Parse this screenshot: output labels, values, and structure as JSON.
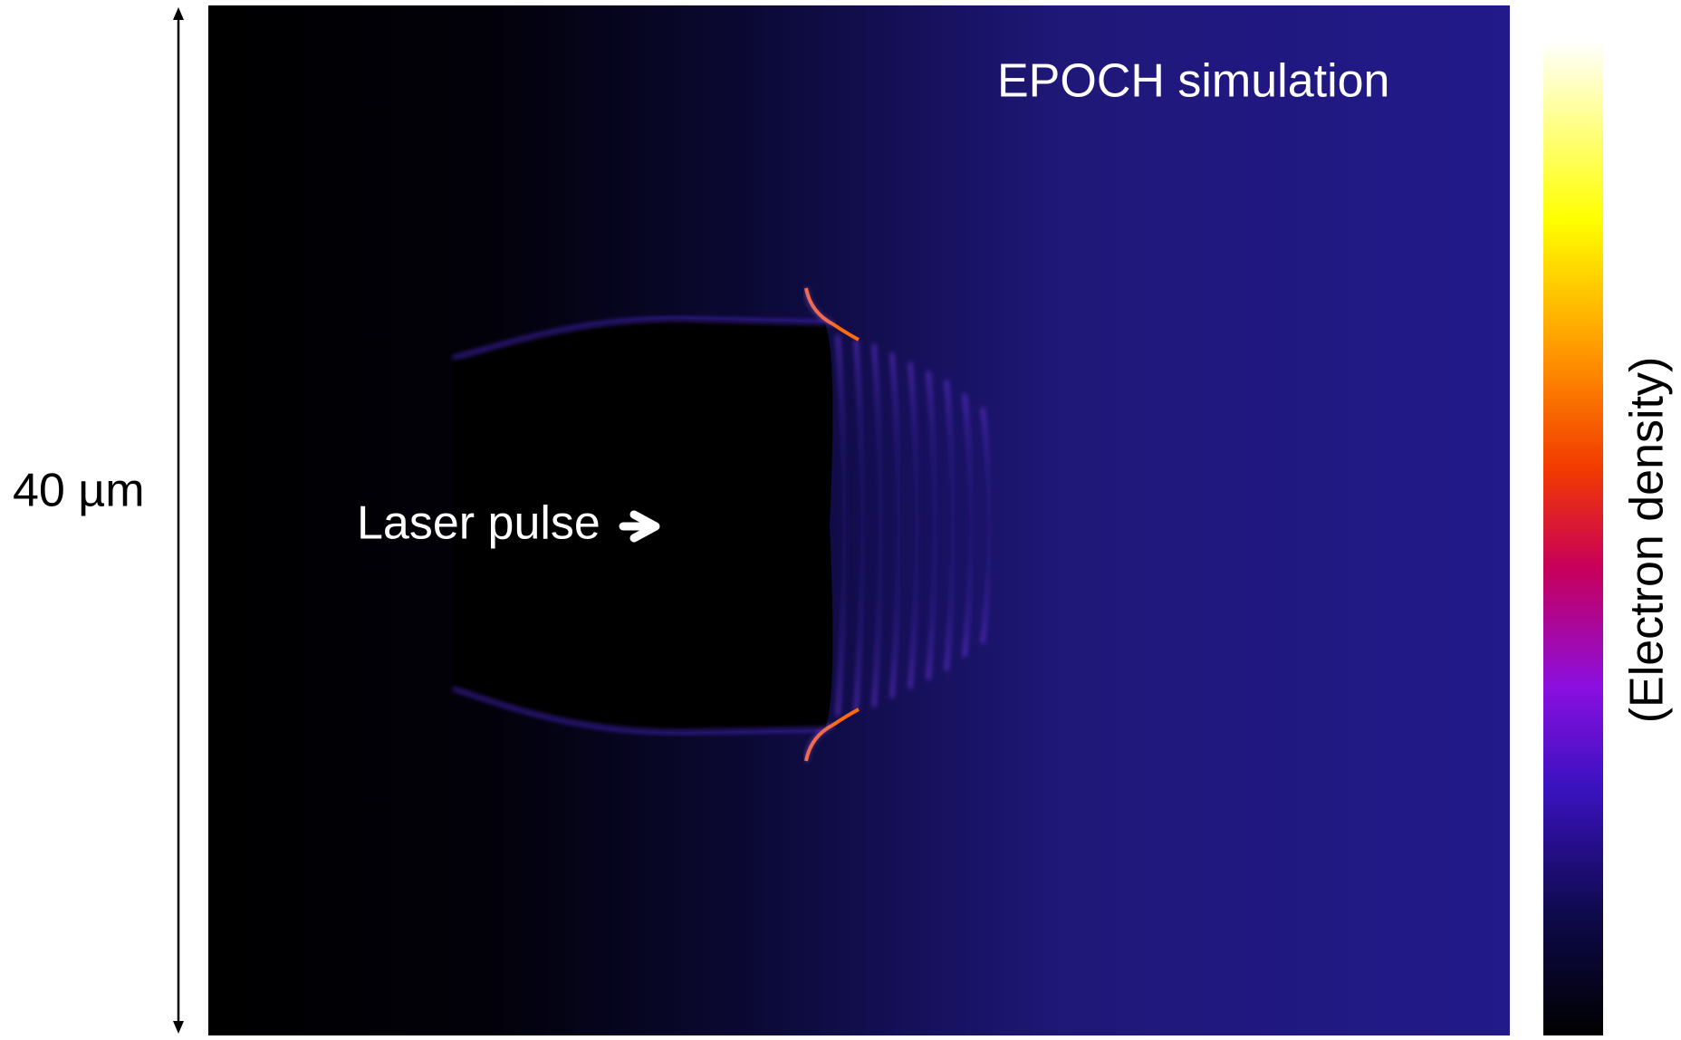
{
  "figure": {
    "title": "EPOCH simulation",
    "annotation": "Laser pulse",
    "scale_label": "40 µm",
    "colorbar_label": "(Electron density)"
  }
}
